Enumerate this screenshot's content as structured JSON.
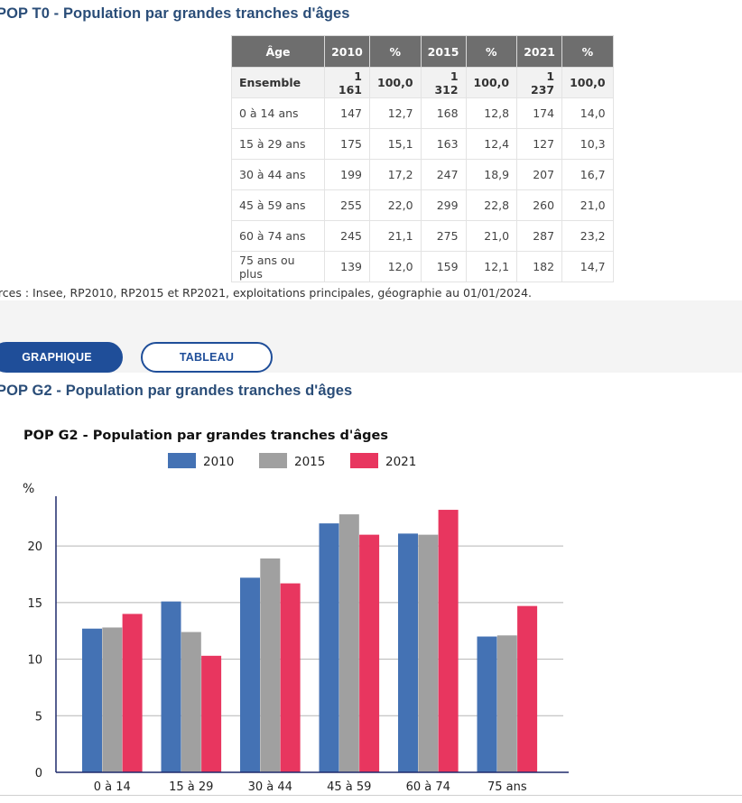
{
  "table_title": "POP T0 - Population par grandes tranches d'âges",
  "table": {
    "headers": [
      "Âge",
      "2010",
      "%",
      "2015",
      "%",
      "2021",
      "%"
    ],
    "rows": [
      [
        "Ensemble",
        "1 161",
        "100,0",
        "1 312",
        "100,0",
        "1 237",
        "100,0"
      ],
      [
        "0 à 14 ans",
        "147",
        "12,7",
        "168",
        "12,8",
        "174",
        "14,0"
      ],
      [
        "15 à 29 ans",
        "175",
        "15,1",
        "163",
        "12,4",
        "127",
        "10,3"
      ],
      [
        "30 à 44 ans",
        "199",
        "17,2",
        "247",
        "18,9",
        "207",
        "16,7"
      ],
      [
        "45 à 59 ans",
        "255",
        "22,0",
        "299",
        "22,8",
        "260",
        "21,0"
      ],
      [
        "60 à 74 ans",
        "245",
        "21,1",
        "275",
        "21,0",
        "287",
        "23,2"
      ],
      [
        "75 ans ou plus",
        "139",
        "12,0",
        "159",
        "12,1",
        "182",
        "14,7"
      ]
    ]
  },
  "source": "urces : Insee, RP2010, RP2015 et RP2021, exploitations principales, géographie au 01/01/2024.",
  "buttons": {
    "graph": "GRAPHIQUE",
    "table": "TABLEAU"
  },
  "chart_section_title": "POP G2 - Population par grandes tranches d'âges",
  "chart_data": {
    "type": "bar",
    "title": "POP G2 - Population par grandes tranches d'âges",
    "ylabel": "%",
    "xlabel": "",
    "categories": [
      "0 à 14",
      "15 à 29",
      "30 à 44",
      "45 à 59",
      "60 à 74",
      "75 ans"
    ],
    "series": [
      {
        "name": "2010",
        "color": "#4472b4",
        "values": [
          12.7,
          15.1,
          17.2,
          22.0,
          21.1,
          12.0
        ]
      },
      {
        "name": "2015",
        "color": "#a0a0a0",
        "values": [
          12.8,
          12.4,
          18.9,
          22.8,
          21.0,
          12.1
        ]
      },
      {
        "name": "2021",
        "color": "#e8365f",
        "values": [
          14.0,
          10.3,
          16.7,
          21.0,
          23.2,
          14.7
        ]
      }
    ],
    "yticks": [
      0,
      5,
      10,
      15,
      20
    ],
    "ylim": [
      0,
      24.4
    ],
    "grid": true,
    "legend": "top"
  }
}
